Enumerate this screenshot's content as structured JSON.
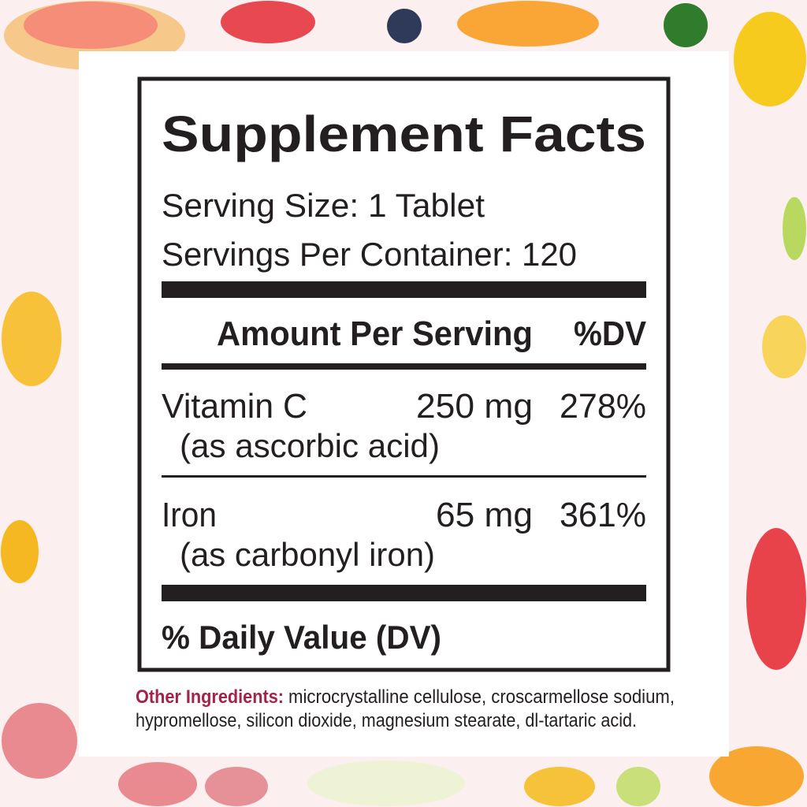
{
  "label": {
    "title": "Supplement Facts",
    "serving_size": "Serving Size: 1 Tablet",
    "servings_per_container": "Servings Per Container: 120",
    "header": {
      "amount": "Amount Per Serving",
      "dv": "%DV"
    },
    "rows": [
      {
        "name": "Vitamin C",
        "source": "(as ascorbic acid)",
        "amount": "250 mg",
        "dv": "278%"
      },
      {
        "name": "Iron",
        "source": "(as carbonyl iron)",
        "amount": "65 mg",
        "dv": "361%"
      }
    ],
    "footnote": "% Daily Value (DV)"
  },
  "other_ingredients": {
    "label": "Other Ingredients:",
    "line1": "microcrystalline cellulose, croscarmellose sodium,",
    "line2": "hypromellose, silicon dioxide, magnesium stearate, dl-tartaric acid."
  },
  "colors": {
    "ink": "#231f20",
    "accent": "#a3234a",
    "background": "#fbefef"
  }
}
